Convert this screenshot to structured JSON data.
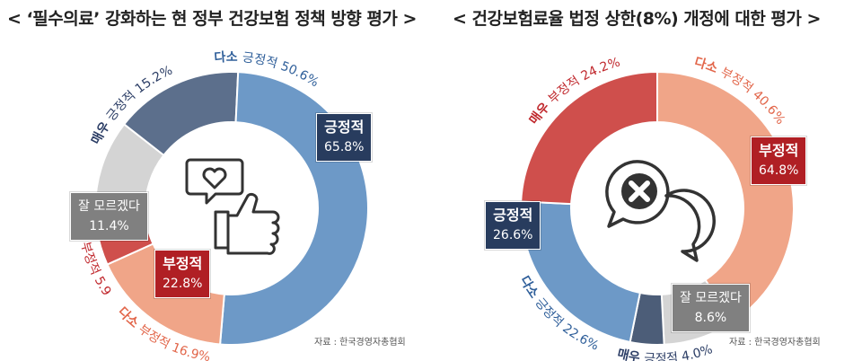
{
  "titles": {
    "left": "< ‘필수의료’ 강화하는 현 정부 건강보험 정책 방향 평가 >",
    "right": "< 건강보험료율 법정 상한(8%) 개정에 대한 평가 >"
  },
  "source": "자료 : 한국경영자총협회",
  "chart_data": [
    {
      "type": "pie",
      "title": "‘필수의료’ 강화하는 현 정부 건강보험 정책 방향 평가",
      "slices": [
        {
          "name": "매우 긍정적",
          "value": 15.2,
          "color": "#5c6f8c"
        },
        {
          "name": "다소 긍정적",
          "value": 50.6,
          "color": "#6d99c7"
        },
        {
          "name": "다소 부정적",
          "value": 16.9,
          "color": "#f0a588"
        },
        {
          "name": "매우 부정적",
          "value": 5.9,
          "color": "#cf4f4c"
        },
        {
          "name": "잘 모르겠다",
          "value": 11.4,
          "color": "#d4d4d4"
        }
      ],
      "arc_labels": [
        {
          "text": "매우 긍정적 15.2%",
          "color": "#2c3e66"
        },
        {
          "text": "다소 긍정적 50.6%",
          "color": "#2f5f9a"
        },
        {
          "text": "다소 부정적 16.9%",
          "color": "#e2664a"
        },
        {
          "text": "매우 부정적 5.9%",
          "color": "#c0282d"
        }
      ],
      "boxes": [
        {
          "label": "긍정적",
          "value": "65.8%"
        },
        {
          "label": "부정적",
          "value": "22.8%"
        },
        {
          "label": "잘 모르겠다",
          "value": "11.4%"
        }
      ]
    },
    {
      "type": "pie",
      "title": "건강보험료율 법정 상한(8%) 개정에 대한 평가",
      "slices": [
        {
          "name": "다소 부정적",
          "value": 40.6,
          "color": "#f0a588"
        },
        {
          "name": "잘 모르겠다",
          "value": 8.6,
          "color": "#d4d4d4"
        },
        {
          "name": "매우 긍정적",
          "value": 4.0,
          "color": "#4c5d78"
        },
        {
          "name": "다소 긍정적",
          "value": 22.6,
          "color": "#6d99c7"
        },
        {
          "name": "매우 부정적",
          "value": 24.2,
          "color": "#cf4f4c"
        }
      ],
      "arc_labels": [
        {
          "text": "매우 부정적 24.2%",
          "color": "#c0282d"
        },
        {
          "text": "다소 부정적 40.6%",
          "color": "#e2664a"
        },
        {
          "text": "다소 긍정적 22.6%",
          "color": "#2f5f9a"
        },
        {
          "text": "매우 긍정적 4.0%",
          "color": "#2c3e66"
        }
      ],
      "boxes": [
        {
          "label": "부정적",
          "value": "64.8%"
        },
        {
          "label": "긍정적",
          "value": "26.6%"
        },
        {
          "label": "잘 모르겠다",
          "value": "8.6%"
        }
      ]
    }
  ]
}
